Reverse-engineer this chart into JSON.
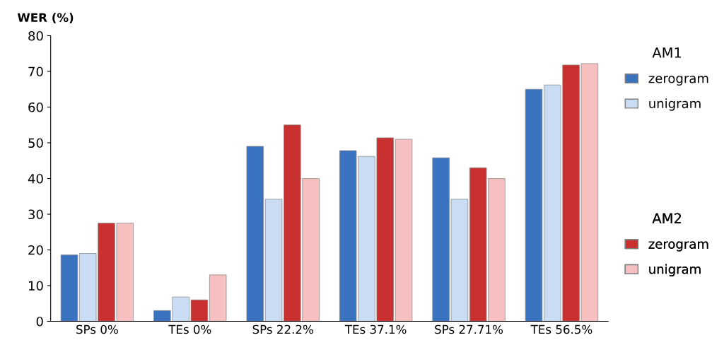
{
  "chart_data": {
    "type": "bar",
    "ylabel": "WER (%)",
    "legend_title": [
      "AM1",
      "AM2"
    ],
    "categories": [
      "SPs 0%",
      "TEs 0%",
      "SPs 22.2%",
      "TEs 37.1%",
      "SPs 27.71%",
      "TEs 56.5%"
    ],
    "series": [
      {
        "name": "zerogram",
        "color": "#3a74c0",
        "values": [
          18.6,
          3,
          49,
          47.8,
          45.8,
          65
        ]
      },
      {
        "name": "unigram",
        "color": "#c9dcf4",
        "values": [
          19,
          6.8,
          34.2,
          46.2,
          34.2,
          66.2
        ]
      },
      {
        "name": "zerogram",
        "color": "#c8312f",
        "values": [
          27.5,
          6,
          55,
          51.4,
          43,
          71.8
        ]
      },
      {
        "name": "unigram",
        "color": "#f6c0c0",
        "values": [
          27.5,
          13,
          40,
          51,
          40,
          72.2
        ]
      }
    ],
    "ylim": [
      0,
      80
    ],
    "yticks": [
      0,
      10,
      20,
      30,
      40,
      50,
      60,
      70,
      80
    ],
    "grid": false,
    "legend": "right"
  }
}
